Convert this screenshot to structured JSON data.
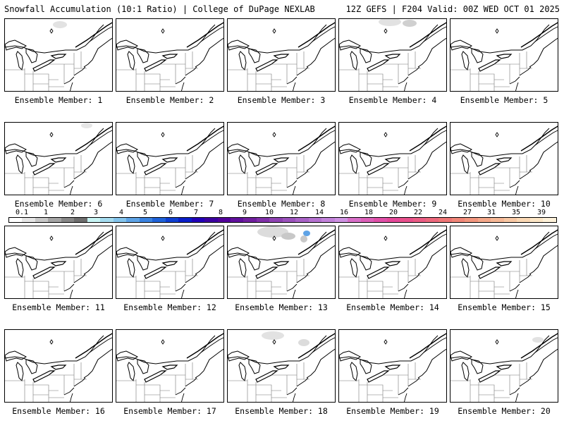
{
  "header": {
    "title": "Snowfall Accumulation (10:1 Ratio) | College of DuPage NEXLAB",
    "run_info": "12Z GEFS | F204 Valid: 00Z WED OCT 01 2025"
  },
  "colorbar": {
    "labels": [
      "0.1",
      "1",
      "2",
      "3",
      "4",
      "5",
      "6",
      "7",
      "8",
      "9",
      "10",
      "12",
      "14",
      "16",
      "18",
      "20",
      "22",
      "24",
      "27",
      "31",
      "35",
      "39"
    ],
    "colors": [
      "#ffffff",
      "#e6e6e6",
      "#c8c8c8",
      "#a5a5a5",
      "#878787",
      "#6e6e6e",
      "#c7f4f4",
      "#a5dcf0",
      "#84c4ec",
      "#5ea3e6",
      "#3a82e0",
      "#1f62d8",
      "#0f3fd0",
      "#0a1ec8",
      "#2200b8",
      "#3c00a0",
      "#52009a",
      "#60109c",
      "#701f9e",
      "#8030a8",
      "#8e42b2",
      "#9b52bc",
      "#a862c6",
      "#b572d0",
      "#c282da",
      "#ce92e2",
      "#d86fc8",
      "#dc60b8",
      "#e050a8",
      "#e44898",
      "#e8508c",
      "#ea5c84",
      "#ec687c",
      "#ee7676",
      "#f08678",
      "#f2967e",
      "#f4a88a",
      "#f6b896",
      "#f8c8a4",
      "#fad8b4",
      "#fce6c6",
      "#fef2da"
    ]
  },
  "members": [
    {
      "label": "Ensemble Member: 1"
    },
    {
      "label": "Ensemble Member: 2"
    },
    {
      "label": "Ensemble Member: 3"
    },
    {
      "label": "Ensemble Member: 4"
    },
    {
      "label": "Ensemble Member: 5"
    },
    {
      "label": "Ensemble Member: 6"
    },
    {
      "label": "Ensemble Member: 7"
    },
    {
      "label": "Ensemble Member: 8"
    },
    {
      "label": "Ensemble Member: 9"
    },
    {
      "label": "Ensemble Member: 10"
    },
    {
      "label": "Ensemble Member: 11"
    },
    {
      "label": "Ensemble Member: 12"
    },
    {
      "label": "Ensemble Member: 13"
    },
    {
      "label": "Ensemble Member: 14"
    },
    {
      "label": "Ensemble Member: 15"
    },
    {
      "label": "Ensemble Member: 16"
    },
    {
      "label": "Ensemble Member: 17"
    },
    {
      "label": "Ensemble Member: 18"
    },
    {
      "label": "Ensemble Member: 19"
    },
    {
      "label": "Ensemble Member: 20"
    }
  ]
}
